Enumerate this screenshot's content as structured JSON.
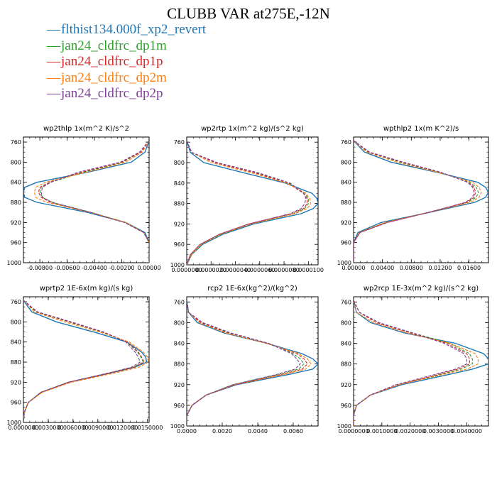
{
  "figure": {
    "title": "CLUBB VAR at275E,-12N"
  },
  "legend": [
    {
      "name": "flthist134.000f_xp2_revert",
      "color": "#1f77b4"
    },
    {
      "name": "jan24_cldfrc_dp1m",
      "color": "#2ca02c"
    },
    {
      "name": "jan24_cldfrc_dp1p",
      "color": "#d62728"
    },
    {
      "name": "jan24_cldfrc_dp2m",
      "color": "#ff7f0e"
    },
    {
      "name": "jan24_cldfrc_dp2p",
      "color": "#7f3f98"
    }
  ],
  "chart_data": [
    {
      "type": "line",
      "title": "wp2thlp  1x(m^2 K)/s^2",
      "xlim": [
        -0.0092,
        0.0
      ],
      "ylim": [
        1000,
        750
      ],
      "xticks": [
        -0.008,
        -0.006,
        -0.004,
        -0.002,
        0.0
      ],
      "xtick_labels": [
        "-0.00800",
        "-0.00600",
        "-0.00400",
        "-0.00200",
        "0.00000"
      ],
      "yticks": [
        760,
        800,
        840,
        880,
        920,
        960,
        1000
      ],
      "ytick_labels": [
        "760",
        "800",
        "840",
        "880",
        "920",
        "960",
        "1000"
      ],
      "y": [
        757,
        780,
        800,
        820,
        840,
        850,
        860,
        870,
        880,
        900,
        920,
        940,
        960,
        980,
        1000
      ],
      "series": [
        {
          "color": "#1f77b4",
          "dash": "solid",
          "x": [
            0,
            -0.0003,
            -0.0013,
            -0.0045,
            -0.0082,
            -0.0091,
            -0.0092,
            -0.0091,
            -0.0082,
            -0.0045,
            -0.0017,
            -0.0003,
            0,
            0,
            0
          ]
        },
        {
          "color": "#2ca02c",
          "dash": "dashed",
          "x": [
            0,
            -0.0006,
            -0.0019,
            -0.0048,
            -0.0072,
            -0.0079,
            -0.008,
            -0.0078,
            -0.0071,
            -0.0042,
            -0.0017,
            -0.0004,
            0,
            0,
            0
          ]
        },
        {
          "color": "#d62728",
          "dash": "dashed",
          "x": [
            0,
            -0.0006,
            -0.002,
            -0.005,
            -0.0073,
            -0.008,
            -0.0081,
            -0.0079,
            -0.0072,
            -0.0043,
            -0.0018,
            -0.0004,
            0,
            0,
            0
          ]
        },
        {
          "color": "#ff7f0e",
          "dash": "dashed",
          "x": [
            0,
            -0.0005,
            -0.0017,
            -0.0046,
            -0.0076,
            -0.0083,
            -0.0084,
            -0.0083,
            -0.0075,
            -0.0043,
            -0.0017,
            -0.0004,
            0,
            0,
            0
          ]
        },
        {
          "color": "#7f3f98",
          "dash": "dashed",
          "x": [
            0,
            -0.0007,
            -0.0021,
            -0.0052,
            -0.0072,
            -0.0078,
            -0.0079,
            -0.0078,
            -0.0071,
            -0.0043,
            -0.0018,
            -0.0004,
            0,
            0,
            0
          ]
        }
      ]
    },
    {
      "type": "line",
      "title": "wp2rtp  1x(m^2 kg)/(s^2 kg)",
      "xlim": [
        0.0,
        1.08e-05
      ],
      "ylim": [
        1000,
        750
      ],
      "xticks": [
        0,
        2e-06,
        4e-06,
        6e-06,
        8e-06,
        1e-05
      ],
      "xtick_labels": [
        "0.0000000",
        "0.0000020",
        "0.0000040",
        "0.0000060",
        "0.0000080",
        "0.0000100"
      ],
      "yticks": [
        760,
        800,
        840,
        880,
        920,
        960,
        1000
      ],
      "ytick_labels": [
        "760",
        "800",
        "840",
        "880",
        "920",
        "960",
        "1000"
      ],
      "y": [
        757,
        780,
        800,
        820,
        840,
        860,
        870,
        880,
        890,
        900,
        920,
        940,
        960,
        980,
        1000
      ],
      "series": [
        {
          "color": "#1f77b4",
          "dash": "solid",
          "x": [
            0,
            3e-07,
            1.4e-06,
            4.7e-06,
            8.1e-06,
            1.03e-05,
            1.07e-05,
            1.08e-05,
            1.04e-05,
            9.4e-06,
            5.5e-06,
            3e-06,
            1.3e-06,
            4e-07,
            0
          ]
        },
        {
          "color": "#2ca02c",
          "dash": "dashed",
          "x": [
            0,
            4e-07,
            2.4e-06,
            5.7e-06,
            8.4e-06,
            9.7e-06,
            1e-05,
            1e-05,
            9.7e-06,
            8.8e-06,
            5.3e-06,
            2.9e-06,
            1.2e-06,
            4e-07,
            0
          ]
        },
        {
          "color": "#d62728",
          "dash": "dashed",
          "x": [
            0,
            4e-07,
            2.3e-06,
            5.6e-06,
            8.3e-06,
            9.6e-06,
            9.9e-06,
            9.9e-06,
            9.6e-06,
            8.6e-06,
            5.1e-06,
            2.7e-06,
            1.1e-06,
            3e-07,
            0
          ]
        },
        {
          "color": "#ff7f0e",
          "dash": "dashed",
          "x": [
            0,
            4e-07,
            2e-06,
            5.3e-06,
            8.2e-06,
            9.8e-06,
            1.01e-05,
            1.02e-05,
            9.9e-06,
            8.9e-06,
            5.3e-06,
            2.8e-06,
            1.2e-06,
            4e-07,
            0
          ]
        },
        {
          "color": "#7f3f98",
          "dash": "dashed",
          "x": [
            0,
            4e-07,
            2.5e-06,
            5.9e-06,
            8.5e-06,
            9.6e-06,
            9.8e-06,
            9.7e-06,
            9.4e-06,
            8.5e-06,
            5.1e-06,
            2.7e-06,
            1.1e-06,
            3e-07,
            0
          ]
        }
      ]
    },
    {
      "type": "line",
      "title": "wpthlp2  1x(m K^2)/s",
      "xlim": [
        0.0,
        0.0187
      ],
      "ylim": [
        1000,
        750
      ],
      "xticks": [
        0,
        0.004,
        0.008,
        0.012,
        0.016
      ],
      "xtick_labels": [
        "0.00000",
        "0.00400",
        "0.00800",
        "0.01200",
        "0.01600"
      ],
      "yticks": [
        760,
        800,
        840,
        880,
        920,
        960,
        1000
      ],
      "ytick_labels": [
        "760",
        "800",
        "840",
        "880",
        "920",
        "960",
        "1000"
      ],
      "y": [
        757,
        780,
        800,
        820,
        840,
        850,
        860,
        870,
        880,
        900,
        920,
        940,
        960,
        980,
        1000
      ],
      "series": [
        {
          "color": "#1f77b4",
          "dash": "solid",
          "x": [
            0,
            0.0015,
            0.0052,
            0.0115,
            0.0172,
            0.0183,
            0.0187,
            0.0183,
            0.0168,
            0.0105,
            0.0038,
            0.0006,
            0,
            0,
            0
          ]
        },
        {
          "color": "#2ca02c",
          "dash": "dashed",
          "x": [
            0,
            0.002,
            0.0065,
            0.0118,
            0.0161,
            0.017,
            0.0173,
            0.017,
            0.0158,
            0.0103,
            0.0045,
            0.0008,
            0,
            0,
            0
          ]
        },
        {
          "color": "#d62728",
          "dash": "dashed",
          "x": [
            0,
            0.0021,
            0.0067,
            0.012,
            0.0159,
            0.0167,
            0.0169,
            0.0167,
            0.0157,
            0.0104,
            0.0046,
            0.0009,
            0,
            0,
            0
          ]
        },
        {
          "color": "#ff7f0e",
          "dash": "dashed",
          "x": [
            0,
            0.0018,
            0.006,
            0.0116,
            0.0165,
            0.0174,
            0.0177,
            0.0174,
            0.0162,
            0.0104,
            0.0043,
            0.0008,
            0,
            0,
            0
          ]
        },
        {
          "color": "#7f3f98",
          "dash": "dashed",
          "x": [
            0,
            0.0022,
            0.0069,
            0.0121,
            0.0158,
            0.0165,
            0.0167,
            0.0165,
            0.0155,
            0.0104,
            0.0047,
            0.0009,
            0,
            0,
            0
          ]
        }
      ]
    },
    {
      "type": "line",
      "title": "wprtp2  1E-6x(m kg)/(s kg)",
      "xlim": [
        0.0,
        0.0152
      ],
      "ylim": [
        1000,
        750
      ],
      "xticks": [
        0,
        0.003,
        0.006,
        0.009,
        0.012,
        0.015
      ],
      "xtick_labels": [
        "0.0000000",
        "0.0030000",
        "0.0060000",
        "0.0090000",
        "0.0120000",
        "0.0150000"
      ],
      "yticks": [
        760,
        800,
        840,
        880,
        920,
        960,
        1000
      ],
      "ytick_labels": [
        "760",
        "800",
        "840",
        "880",
        "920",
        "960",
        "1000"
      ],
      "y": [
        757,
        780,
        800,
        820,
        840,
        860,
        870,
        880,
        890,
        900,
        920,
        940,
        960,
        980,
        1000
      ],
      "series": [
        {
          "color": "#1f77b4",
          "dash": "solid",
          "x": [
            0,
            0.001,
            0.004,
            0.0085,
            0.0125,
            0.0143,
            0.0148,
            0.0149,
            0.0135,
            0.011,
            0.0055,
            0.0022,
            0.0006,
            0.0001,
            0
          ]
        },
        {
          "color": "#2ca02c",
          "dash": "dashed",
          "x": [
            0,
            0.0015,
            0.0055,
            0.0095,
            0.0125,
            0.0138,
            0.0142,
            0.0145,
            0.0133,
            0.0108,
            0.0054,
            0.0021,
            0.0006,
            0.0001,
            0
          ]
        },
        {
          "color": "#d62728",
          "dash": "dashed",
          "x": [
            0,
            0.0016,
            0.0056,
            0.0096,
            0.0126,
            0.0139,
            0.0143,
            0.0146,
            0.0134,
            0.0109,
            0.0055,
            0.0022,
            0.0006,
            0.0001,
            0
          ]
        },
        {
          "color": "#ff7f0e",
          "dash": "dashed",
          "x": [
            0,
            0.0013,
            0.005,
            0.0092,
            0.0128,
            0.0145,
            0.015,
            0.0151,
            0.014,
            0.0115,
            0.0058,
            0.0023,
            0.0006,
            0.0001,
            0
          ]
        },
        {
          "color": "#7f3f98",
          "dash": "dashed",
          "x": [
            0,
            0.0017,
            0.0058,
            0.0097,
            0.0124,
            0.0135,
            0.0139,
            0.0141,
            0.0131,
            0.0107,
            0.0054,
            0.0021,
            0.0006,
            0.0001,
            0
          ]
        }
      ]
    },
    {
      "type": "line",
      "title": "rcp2  1E-6x(kg^2)/(kg^2)",
      "xlim": [
        0.0,
        0.0074
      ],
      "ylim": [
        1000,
        750
      ],
      "xticks": [
        0,
        0.002,
        0.004,
        0.006
      ],
      "xtick_labels": [
        "0.0000",
        "0.0020",
        "0.0040",
        "0.0060"
      ],
      "yticks": [
        760,
        800,
        840,
        880,
        920,
        960,
        1000
      ],
      "ytick_labels": [
        "760",
        "800",
        "840",
        "880",
        "920",
        "960",
        "1000"
      ],
      "y": [
        757,
        780,
        800,
        820,
        840,
        860,
        870,
        880,
        890,
        900,
        920,
        940,
        960,
        980,
        1000
      ],
      "series": [
        {
          "color": "#1f77b4",
          "dash": "solid",
          "x": [
            0,
            0.0001,
            0.0006,
            0.0021,
            0.0045,
            0.0065,
            0.0071,
            0.0074,
            0.0071,
            0.0058,
            0.0028,
            0.0011,
            0.0003,
            0,
            0
          ]
        },
        {
          "color": "#2ca02c",
          "dash": "dashed",
          "x": [
            0,
            0.0001,
            0.0008,
            0.0024,
            0.0046,
            0.006,
            0.0064,
            0.0066,
            0.0063,
            0.0052,
            0.0026,
            0.0011,
            0.0003,
            0,
            0
          ]
        },
        {
          "color": "#d62728",
          "dash": "dashed",
          "x": [
            0,
            0.0001,
            0.0008,
            0.0023,
            0.0045,
            0.0062,
            0.0066,
            0.0068,
            0.0065,
            0.0054,
            0.0027,
            0.0011,
            0.0003,
            0,
            0
          ]
        },
        {
          "color": "#ff7f0e",
          "dash": "dashed",
          "x": [
            0,
            0.0001,
            0.0007,
            0.0022,
            0.0045,
            0.0063,
            0.0068,
            0.007,
            0.0067,
            0.0055,
            0.0027,
            0.0011,
            0.0003,
            0,
            0
          ]
        },
        {
          "color": "#7f3f98",
          "dash": "dashed",
          "x": [
            0,
            0.0001,
            0.0009,
            0.0025,
            0.0046,
            0.0059,
            0.0062,
            0.0064,
            0.0061,
            0.0051,
            0.0026,
            0.0011,
            0.0003,
            0,
            0
          ]
        }
      ]
    },
    {
      "type": "line",
      "title": "wp2rcp  1E-3x(m^2 kg)/(s^2 kg)",
      "xlim": [
        0.0,
        0.00477
      ],
      "ylim": [
        1000,
        750
      ],
      "xticks": [
        0,
        0.001,
        0.002,
        0.003,
        0.004
      ],
      "xtick_labels": [
        "0.0000000",
        "0.0010000",
        "0.0020000",
        "0.0030000",
        "0.0040000"
      ],
      "yticks": [
        760,
        800,
        840,
        880,
        920,
        960,
        1000
      ],
      "ytick_labels": [
        "760",
        "800",
        "840",
        "880",
        "920",
        "960",
        "1000"
      ],
      "y": [
        757,
        780,
        800,
        820,
        840,
        860,
        870,
        880,
        890,
        900,
        920,
        940,
        960,
        980,
        1000
      ],
      "series": [
        {
          "color": "#1f77b4",
          "dash": "solid",
          "x": [
            0,
            0.0001,
            0.0006,
            0.0018,
            0.0036,
            0.0046,
            0.00477,
            0.00477,
            0.0042,
            0.0034,
            0.0017,
            0.0006,
            0.0001,
            0,
            0
          ]
        },
        {
          "color": "#2ca02c",
          "dash": "dashed",
          "x": [
            0,
            0.0002,
            0.0009,
            0.0021,
            0.0034,
            0.0041,
            0.0042,
            0.0042,
            0.0038,
            0.0031,
            0.0016,
            0.0006,
            0.0001,
            0,
            0
          ]
        },
        {
          "color": "#d62728",
          "dash": "dashed",
          "x": [
            0,
            0.0002,
            0.0008,
            0.002,
            0.0033,
            0.004,
            0.0041,
            0.0041,
            0.0037,
            0.003,
            0.0016,
            0.0006,
            0.0001,
            0,
            0
          ]
        },
        {
          "color": "#ff7f0e",
          "dash": "dashed",
          "x": [
            0,
            0.0001,
            0.0007,
            0.0019,
            0.0034,
            0.0043,
            0.0044,
            0.0044,
            0.004,
            0.0032,
            0.0016,
            0.0006,
            0.0001,
            0,
            0
          ]
        },
        {
          "color": "#7f3f98",
          "dash": "dashed",
          "x": [
            0,
            0.0002,
            0.0009,
            0.0021,
            0.0032,
            0.0039,
            0.004,
            0.004,
            0.0036,
            0.0029,
            0.0015,
            0.0006,
            0.0001,
            0,
            0
          ]
        }
      ]
    }
  ]
}
